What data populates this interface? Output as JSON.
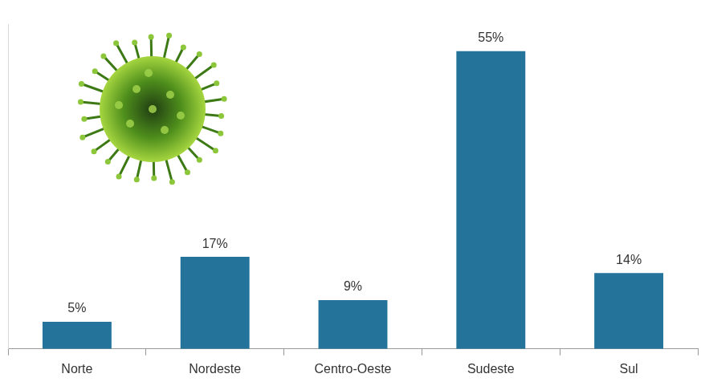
{
  "chart_data": {
    "type": "bar",
    "categories": [
      "Norte",
      "Nordeste",
      "Centro-Oeste",
      "Sudeste",
      "Sul"
    ],
    "values": [
      5,
      17,
      9,
      55,
      14
    ],
    "value_labels": [
      "5%",
      "17%",
      "9%",
      "55%",
      "14%"
    ],
    "data_labels": true,
    "color": "#23739a",
    "ylim": [
      0,
      60
    ],
    "yticks": [],
    "grid": false,
    "tick_labels": "x"
  }
}
